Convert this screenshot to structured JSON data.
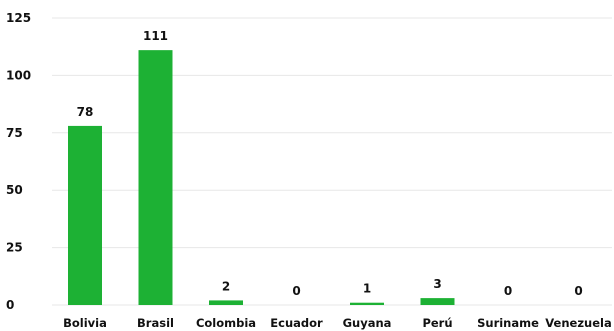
{
  "chart_data": {
    "type": "bar",
    "categories": [
      "Bolivia",
      "Brasil",
      "Colombia",
      "Ecuador",
      "Guyana",
      "Perú",
      "Suriname",
      "Venezuela"
    ],
    "values": [
      78,
      111,
      2,
      0,
      1,
      3,
      0,
      0
    ],
    "value_labels": [
      "78",
      "111",
      "2",
      "0",
      "1",
      "3",
      "0",
      "0"
    ],
    "ylim": [
      0,
      125
    ],
    "yticks": [
      "0",
      "25",
      "50",
      "75",
      "100",
      "125"
    ],
    "grid": true,
    "bar_color": "#1db134",
    "title": "",
    "xlabel": "",
    "ylabel": ""
  }
}
